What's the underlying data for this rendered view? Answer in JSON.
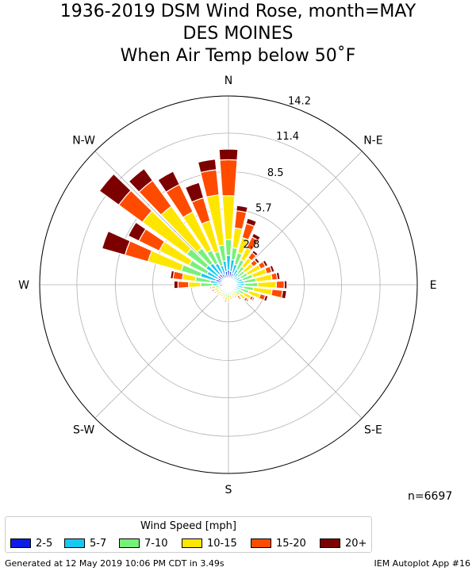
{
  "title": {
    "line1": "1936-2019 DSM Wind Rose, month=MAY",
    "line2": "DES MOINES",
    "line3": "When  Air Temp below 50˚F"
  },
  "footer": {
    "generated": "Generated at 12 May 2019 10:06 PM CDT in 3.49s",
    "app": "IEM Autoplot App #16"
  },
  "count_label": "n=6697",
  "chart_data": {
    "type": "windrose",
    "title": "1936-2019 DSM Wind Rose, month=MAY",
    "direction_labels": [
      "N",
      "N-E",
      "E",
      "S-E",
      "S",
      "S-W",
      "W",
      "N-W"
    ],
    "radial_ticks": [
      "2.8",
      "5.7",
      "8.5",
      "11.4",
      "14.2"
    ],
    "radial_tick_values": [
      2.8,
      5.7,
      8.5,
      11.4,
      14.2
    ],
    "radial_max": 14.2,
    "units": "percent of observations",
    "legend": {
      "title": "Wind Speed [mph]",
      "bins": [
        "2-5",
        "5-7",
        "7-10",
        "10-15",
        "15-20",
        "20+"
      ],
      "colors": [
        "#0a1ee6",
        "#19c8f0",
        "#78f078",
        "#ffe600",
        "#ff4b00",
        "#7d0000"
      ]
    },
    "directions_deg": [
      0,
      10,
      20,
      30,
      40,
      50,
      60,
      70,
      80,
      90,
      100,
      110,
      120,
      130,
      140,
      150,
      160,
      170,
      180,
      190,
      200,
      210,
      220,
      230,
      240,
      250,
      260,
      270,
      280,
      290,
      300,
      310,
      320,
      330,
      340,
      350
    ],
    "cumulative": [
      [
        1.1,
        2.2,
        3.4,
        6.7,
        9.4,
        10.2
      ],
      [
        1.0,
        1.9,
        2.8,
        4.3,
        5.6,
        6.0
      ],
      [
        0.9,
        1.6,
        2.5,
        3.7,
        4.8,
        5.2
      ],
      [
        0.7,
        1.3,
        2.1,
        3.1,
        4.0,
        4.3
      ],
      [
        0.6,
        1.1,
        1.7,
        2.5,
        3.0,
        3.2
      ],
      [
        0.5,
        0.9,
        1.5,
        2.3,
        2.7,
        2.9
      ],
      [
        0.5,
        1.0,
        1.6,
        2.7,
        3.1,
        3.3
      ],
      [
        0.6,
        1.1,
        1.9,
        3.0,
        3.4,
        3.6
      ],
      [
        0.6,
        1.2,
        2.1,
        3.3,
        3.7,
        3.9
      ],
      [
        0.6,
        1.2,
        2.2,
        3.6,
        4.2,
        4.4
      ],
      [
        0.5,
        1.1,
        1.9,
        3.3,
        4.1,
        4.4
      ],
      [
        0.5,
        0.9,
        1.6,
        2.5,
        2.9,
        3.1
      ],
      [
        0.4,
        0.8,
        1.3,
        1.9,
        2.1,
        2.2
      ],
      [
        0.4,
        0.7,
        1.1,
        1.6,
        1.8,
        1.9
      ],
      [
        0.3,
        0.5,
        0.8,
        1.1,
        1.3,
        1.4
      ],
      [
        0.3,
        0.5,
        0.7,
        0.9,
        1.0,
        1.1
      ],
      [
        0.3,
        0.5,
        0.7,
        0.9,
        1.0,
        1.0
      ],
      [
        0.3,
        0.6,
        0.8,
        1.0,
        1.1,
        1.1
      ],
      [
        0.4,
        0.7,
        1.0,
        1.2,
        1.3,
        1.3
      ],
      [
        0.4,
        0.6,
        0.9,
        1.2,
        1.3,
        1.3
      ],
      [
        0.3,
        0.6,
        0.8,
        1.0,
        1.1,
        1.1
      ],
      [
        0.3,
        0.5,
        0.7,
        0.9,
        1.0,
        1.0
      ],
      [
        0.3,
        0.5,
        0.7,
        0.9,
        1.0,
        1.0
      ],
      [
        0.3,
        0.5,
        0.8,
        1.0,
        1.1,
        1.1
      ],
      [
        0.3,
        0.6,
        0.8,
        1.1,
        1.2,
        1.2
      ],
      [
        0.4,
        0.6,
        0.8,
        1.1,
        1.2,
        1.3
      ],
      [
        0.4,
        0.7,
        1.0,
        1.3,
        1.4,
        1.4
      ],
      [
        0.7,
        1.2,
        2.1,
        3.0,
        3.8,
        4.1
      ],
      [
        0.8,
        1.4,
        2.5,
        3.5,
        4.2,
        4.4
      ],
      [
        1.0,
        2.2,
        3.7,
        6.3,
        8.1,
        9.9
      ],
      [
        0.9,
        1.8,
        3.3,
        5.8,
        7.5,
        8.4
      ],
      [
        1.0,
        2.1,
        3.9,
        8.0,
        10.2,
        12.0
      ],
      [
        1.0,
        2.0,
        3.4,
        7.3,
        9.7,
        10.8
      ],
      [
        0.9,
        1.8,
        2.9,
        6.1,
        8.4,
        9.5
      ],
      [
        0.8,
        1.5,
        2.6,
        5.0,
        6.8,
        8.0
      ],
      [
        1.0,
        1.8,
        3.0,
        6.8,
        8.7,
        9.5
      ]
    ]
  }
}
